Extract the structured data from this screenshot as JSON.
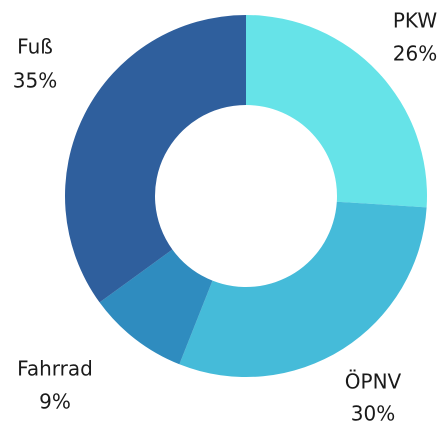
{
  "chart_data": {
    "type": "donut",
    "categories": [
      "PKW",
      "ÖPNV",
      "Fahrrad",
      "Fuß"
    ],
    "values": [
      26,
      30,
      9,
      35
    ],
    "value_labels": [
      "26%",
      "30%",
      "9%",
      "35%"
    ],
    "colors": [
      "#66e3e8",
      "#45bbd9",
      "#2f8cbf",
      "#2f5f9d"
    ]
  }
}
